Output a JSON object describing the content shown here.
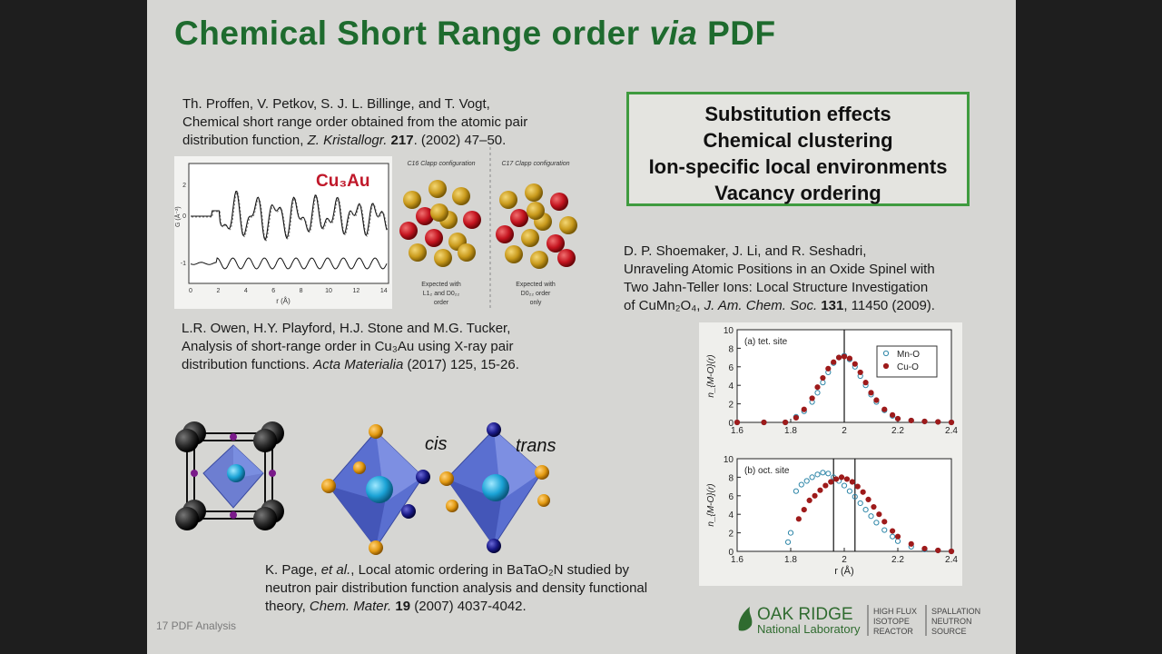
{
  "slide": {
    "title_main": "Chemical Short Range order",
    "title_italic": "via",
    "title_end": "PDF",
    "box_items": [
      "Substitution effects",
      "Chemical clustering",
      "Ion-specific local environments",
      "Vacancy ordering"
    ],
    "ref1": {
      "line1": "Th. Proffen, V. Petkov, S. J. L. Billinge, and T. Vogt,",
      "line2": "Chemical short range order obtained from the atomic pair",
      "line3a": "distribution function, ",
      "journal": "Z. Kristallogr.",
      "volume": "217",
      "rest": ". (2002) 47–50."
    },
    "ref2": {
      "line1": "L.R. Owen, H.Y. Playford, H.J. Stone and M.G. Tucker,",
      "line2": "Analysis of short-range order in Cu₃Au using X-ray pair",
      "line3a": "distribution functions.  ",
      "journal": "Acta Materialia",
      "rest": " (2017) 125, 15-26."
    },
    "ref3": {
      "line1a": "K. Page, ",
      "etal": "et al.",
      "line1b": ", Local atomic ordering in BaTaO₂N studied by",
      "line2": "neutron pair distribution function analysis and density functional",
      "line3a": "theory, ",
      "journal": "Chem. Mater.",
      "volume": "19",
      "rest": " (2007) 4037-4042."
    },
    "ref4": {
      "line1": "D. P. Shoemaker, J. Li, and R. Seshadri,",
      "line2": "Unraveling Atomic Positions in an Oxide Spinel with",
      "line3": "Two Jahn-Teller Ions: Local Structure Investigation",
      "line4a": "of CuMn₂O₄, ",
      "journal": "J. Am. Chem. Soc.",
      "volume": "131",
      "rest": ", 11450 (2009)."
    },
    "footer": "17  PDF Analysis",
    "cu3au_label": "Cu₃Au",
    "gr_plot": {
      "ylabel": "G (Å⁻²)",
      "xlabel": "r (Å)",
      "xticks": [
        "0",
        "2",
        "4",
        "6",
        "8",
        "10",
        "12",
        "14"
      ],
      "yticks": [
        "2",
        "0",
        "-1"
      ]
    },
    "clapp_left": {
      "top": "C16 Clapp configuration",
      "bottom1": "Expected with",
      "bottom2": "L1₂ and D0₂₂",
      "bottom3": "order"
    },
    "clapp_right": {
      "top": "C17 Clapp configuration",
      "bottom1": "Expected with",
      "bottom2": "D0₂₂ order",
      "bottom3": "only"
    },
    "cis_label": "cis",
    "trans_label": "trans",
    "ornl": {
      "name1": "OAK RIDGE",
      "name2": "National Laboratory",
      "hfir": [
        "HIGH FLUX",
        "ISOTOPE",
        "REACTOR"
      ],
      "sns": [
        "SPALLATION",
        "NEUTRON",
        "SOURCE"
      ]
    }
  },
  "chart_data": [
    {
      "type": "scatter",
      "panel": "(a) tet. site",
      "xlabel": "",
      "ylabel": "n_{M-O}(r)",
      "xlim": [
        1.6,
        2.4
      ],
      "ylim": [
        0,
        10
      ],
      "xticks": [
        1.6,
        1.8,
        2.0,
        2.2,
        2.4
      ],
      "yticks": [
        0,
        2,
        4,
        6,
        8,
        10
      ],
      "vlines": [
        2.0
      ],
      "legend": "top-right",
      "series": [
        {
          "name": "Mn-O",
          "color": "#2e86a8",
          "marker": "open-circle",
          "x": [
            1.6,
            1.7,
            1.78,
            1.82,
            1.85,
            1.88,
            1.9,
            1.92,
            1.94,
            1.96,
            1.98,
            2.0,
            2.02,
            2.04,
            2.06,
            2.08,
            2.1,
            2.12,
            2.15,
            2.18,
            2.2,
            2.25,
            2.3,
            2.35,
            2.4
          ],
          "y": [
            0,
            0,
            0,
            0.6,
            1.2,
            2.2,
            3.2,
            4.3,
            5.4,
            6.4,
            7.0,
            7.2,
            6.8,
            6.0,
            5.0,
            4.0,
            3.0,
            2.2,
            1.3,
            0.7,
            0.4,
            0.2,
            0.1,
            0.05,
            0
          ]
        },
        {
          "name": "Cu-O",
          "color": "#9e1b1b",
          "marker": "filled-circle",
          "x": [
            1.6,
            1.7,
            1.78,
            1.82,
            1.85,
            1.88,
            1.9,
            1.92,
            1.94,
            1.96,
            1.98,
            2.0,
            2.02,
            2.04,
            2.06,
            2.08,
            2.1,
            2.12,
            2.15,
            2.18,
            2.2,
            2.25,
            2.3,
            2.35,
            2.4
          ],
          "y": [
            0,
            0,
            0,
            0.5,
            1.4,
            2.6,
            3.8,
            4.8,
            5.8,
            6.5,
            7.0,
            7.1,
            6.9,
            6.3,
            5.4,
            4.3,
            3.2,
            2.4,
            1.4,
            0.8,
            0.4,
            0.2,
            0.1,
            0.05,
            0
          ]
        }
      ]
    },
    {
      "type": "scatter",
      "panel": "(b) oct. site",
      "xlabel": "r (Å)",
      "ylabel": "n_{M-O}(r)",
      "xlim": [
        1.6,
        2.4
      ],
      "ylim": [
        0,
        10
      ],
      "xticks": [
        1.6,
        1.8,
        2.0,
        2.2,
        2.4
      ],
      "yticks": [
        0,
        2,
        4,
        6,
        8,
        10
      ],
      "vlines": [
        1.96,
        2.04
      ],
      "series": [
        {
          "name": "Mn-O",
          "color": "#2e86a8",
          "marker": "open-circle",
          "x": [
            1.79,
            1.8,
            1.82,
            1.84,
            1.86,
            1.88,
            1.9,
            1.92,
            1.94,
            1.96,
            1.98,
            2.0,
            2.02,
            2.04,
            2.06,
            2.08,
            2.1,
            2.12,
            2.15,
            2.18,
            2.2,
            2.25,
            2.3,
            2.35,
            2.4
          ],
          "y": [
            1.0,
            2.0,
            6.5,
            7.2,
            7.6,
            8.0,
            8.3,
            8.5,
            8.4,
            8.0,
            7.6,
            7.1,
            6.5,
            5.9,
            5.2,
            4.5,
            3.8,
            3.1,
            2.3,
            1.6,
            1.1,
            0.5,
            0.2,
            0.1,
            0
          ]
        },
        {
          "name": "Cu-O",
          "color": "#9e1b1b",
          "marker": "filled-circle",
          "x": [
            1.83,
            1.85,
            1.87,
            1.89,
            1.91,
            1.93,
            1.95,
            1.97,
            1.99,
            2.01,
            2.03,
            2.05,
            2.07,
            2.09,
            2.11,
            2.13,
            2.15,
            2.18,
            2.2,
            2.25,
            2.3,
            2.35,
            2.4
          ],
          "y": [
            3.5,
            4.5,
            5.5,
            6.0,
            6.6,
            7.1,
            7.5,
            7.8,
            8.0,
            7.8,
            7.5,
            7.0,
            6.4,
            5.6,
            4.8,
            4.0,
            3.2,
            2.2,
            1.6,
            0.8,
            0.3,
            0.1,
            0
          ]
        }
      ]
    }
  ]
}
